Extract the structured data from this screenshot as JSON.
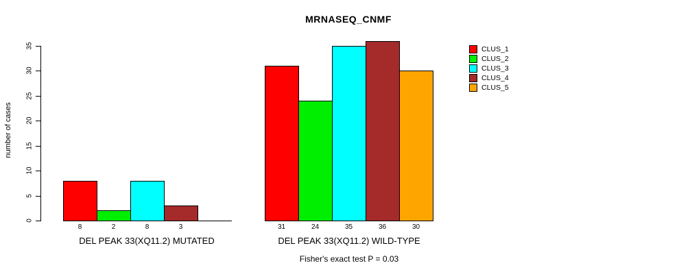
{
  "title": "MRNASEQ_CNMF",
  "chart_data": {
    "type": "bar",
    "title": "MRNASEQ_CNMF",
    "ylabel": "number of cases",
    "xlabel": "",
    "ylim": [
      0,
      35
    ],
    "yticks": [
      0,
      5,
      10,
      15,
      20,
      25,
      30,
      35
    ],
    "grid": false,
    "legend_position": "right",
    "series": [
      {
        "name": "CLUS_1",
        "color": "#FF0000"
      },
      {
        "name": "CLUS_2",
        "color": "#00EE00"
      },
      {
        "name": "CLUS_3",
        "color": "#00FFFF"
      },
      {
        "name": "CLUS_4",
        "color": "#A52A2A"
      },
      {
        "name": "CLUS_5",
        "color": "#FFA500"
      }
    ],
    "groups": [
      {
        "label": "DEL PEAK 33(XQ11.2) MUTATED",
        "values": [
          8,
          2,
          8,
          3,
          0
        ]
      },
      {
        "label": "DEL PEAK 33(XQ11.2) WILD-TYPE",
        "values": [
          31,
          24,
          35,
          36,
          30
        ]
      }
    ],
    "annotation": "Fisher's exact test P = 0.03"
  }
}
